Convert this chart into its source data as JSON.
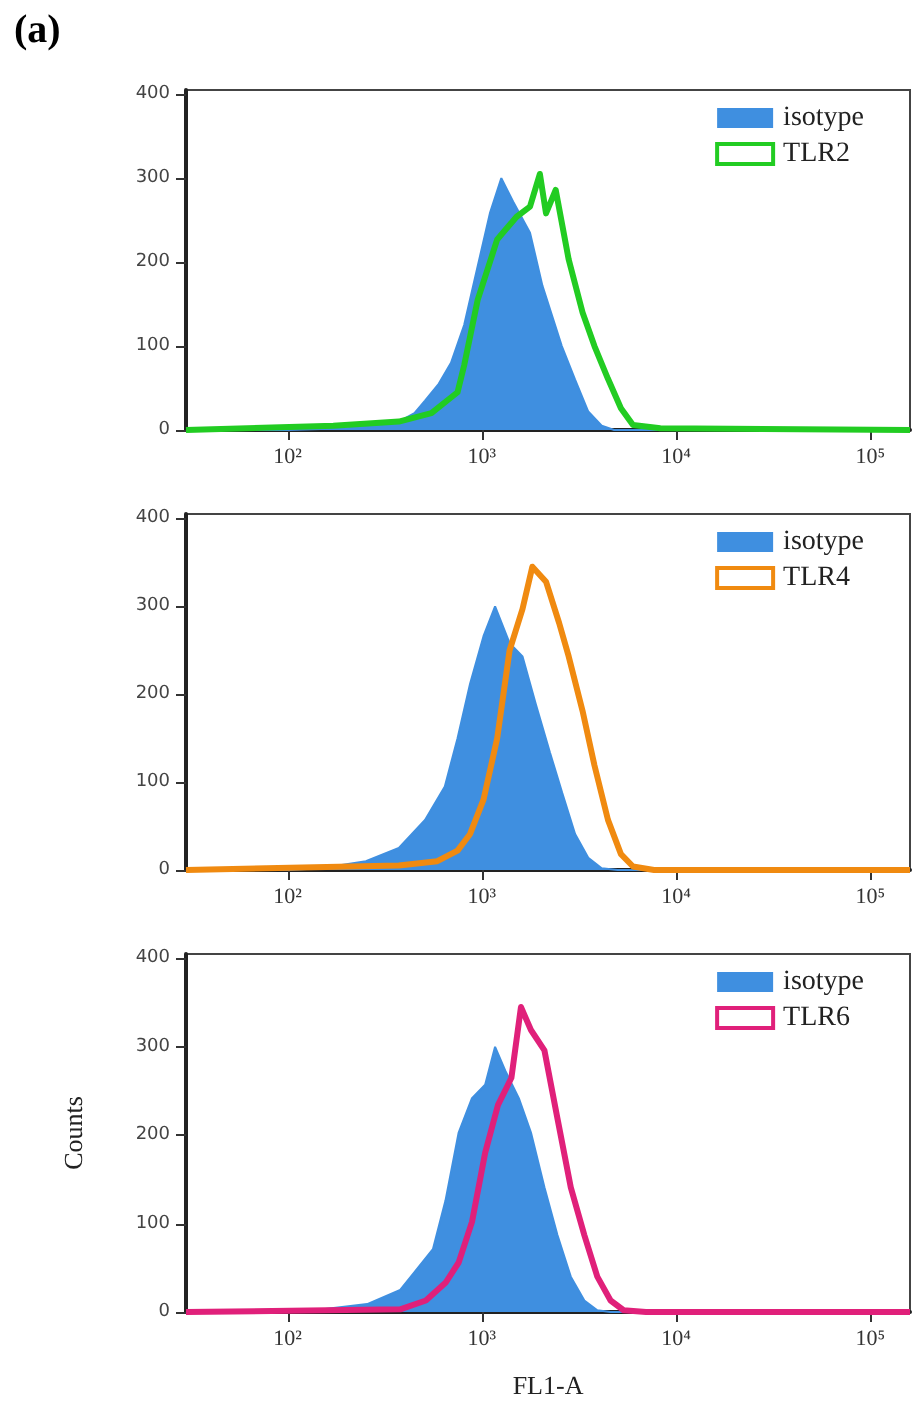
{
  "chart_data": [
    {
      "type": "area",
      "title": "(a)",
      "legend": "top right",
      "log": "x",
      "xlim": [
        30,
        160000
      ],
      "ylim": [
        0,
        405
      ],
      "xticks": [
        {
          "value": 100,
          "label": "10²"
        },
        {
          "value": 1000,
          "label": "10³"
        },
        {
          "value": 10000,
          "label": "10⁴"
        },
        {
          "value": 100000,
          "label": "10⁵"
        }
      ],
      "yticks": [
        0,
        100,
        200,
        300,
        400
      ],
      "series": [
        {
          "name": "isotype",
          "color": "#3f8fe0",
          "x": [
            30,
            100,
            200,
            300,
            374,
            450,
            510,
            600,
            694,
            811,
            952,
            1100,
            1260,
            1450,
            1770,
            2050,
            2580,
            3020,
            3530,
            4140,
            4800,
            160000
          ],
          "values": [
            0,
            0,
            2,
            5,
            10,
            20,
            35,
            55,
            80,
            125,
            195,
            258,
            300,
            272,
            235,
            172,
            100,
            60,
            22,
            5,
            0,
            0
          ]
        },
        {
          "name": "TLR2",
          "type": "line",
          "color": "#22cc22",
          "x": [
            30,
            172,
            374,
            550,
            750,
            811,
            952,
            1200,
            1510,
            1770,
            1990,
            2140,
            2400,
            2800,
            3300,
            3800,
            4460,
            5200,
            6000,
            8300,
            160000
          ],
          "values": [
            0,
            5,
            10,
            20,
            45,
            77,
            155,
            227,
            254,
            266,
            305,
            258,
            286,
            203,
            140,
            100,
            61,
            26,
            6,
            2,
            0
          ]
        }
      ]
    },
    {
      "type": "area",
      "legend": "top right",
      "log": "x",
      "xlim": [
        30,
        160000
      ],
      "ylim": [
        0,
        405
      ],
      "xticks": [
        {
          "value": 100,
          "label": "10²"
        },
        {
          "value": 1000,
          "label": "10³"
        },
        {
          "value": 10000,
          "label": "10⁴"
        },
        {
          "value": 100000,
          "label": "10⁵"
        }
      ],
      "yticks": [
        0,
        100,
        200,
        300,
        400
      ],
      "series": [
        {
          "name": "isotype",
          "color": "#3f8fe0",
          "x": [
            30,
            100,
            148,
            253,
            374,
            510,
            645,
            750,
            870,
            1020,
            1170,
            1390,
            1620,
            1900,
            2240,
            2590,
            3020,
            3530,
            4140,
            5000,
            160000
          ],
          "values": [
            0,
            0,
            2,
            10,
            25,
            57,
            95,
            150,
            212,
            266,
            300,
            258,
            243,
            188,
            134,
            88,
            41,
            14,
            2,
            0,
            0
          ]
        },
        {
          "name": "TLR4",
          "type": "line",
          "color": "#f08a10",
          "x": [
            30,
            374,
            590,
            750,
            870,
            1020,
            1200,
            1390,
            1620,
            1820,
            2140,
            2500,
            2800,
            3300,
            3800,
            4460,
            5200,
            6000,
            7700,
            160000
          ],
          "values": [
            0,
            5,
            10,
            22,
            41,
            80,
            150,
            250,
            297,
            345,
            328,
            281,
            243,
            181,
            119,
            57,
            18,
            4,
            0,
            0
          ]
        }
      ]
    },
    {
      "type": "area",
      "legend": "top right",
      "log": "x",
      "xlim": [
        30,
        160000
      ],
      "ylim": [
        0,
        405
      ],
      "xlabel": "FL1-A",
      "ylabel": "Counts",
      "xticks": [
        {
          "value": 100,
          "label": "10²"
        },
        {
          "value": 1000,
          "label": "10³"
        },
        {
          "value": 10000,
          "label": "10⁴"
        },
        {
          "value": 100000,
          "label": "10⁵"
        }
      ],
      "yticks": [
        0,
        100,
        200,
        300,
        400
      ],
      "series": [
        {
          "name": "isotype",
          "color": "#3f8fe0",
          "x": [
            30,
            100,
            138,
            257,
            380,
            560,
            650,
            760,
            890,
            1040,
            1170,
            1320,
            1550,
            1790,
            2100,
            2450,
            2870,
            3370,
            3930,
            4600,
            160000
          ],
          "values": [
            0,
            0,
            2,
            9,
            25,
            71,
            126,
            203,
            242,
            257,
            300,
            273,
            242,
            203,
            141,
            87,
            40,
            13,
            2,
            0,
            0
          ]
        },
        {
          "name": "TLR6",
          "type": "line",
          "color": "#e0207a",
          "x": [
            30,
            380,
            515,
            650,
            760,
            890,
            1040,
            1210,
            1420,
            1590,
            1790,
            2100,
            2450,
            2870,
            3370,
            3930,
            4600,
            5370,
            7000,
            160000
          ],
          "values": [
            0,
            3,
            13,
            33,
            56,
            102,
            180,
            234,
            265,
            345,
            319,
            296,
            219,
            141,
            87,
            40,
            13,
            2,
            0,
            0
          ]
        }
      ]
    }
  ]
}
